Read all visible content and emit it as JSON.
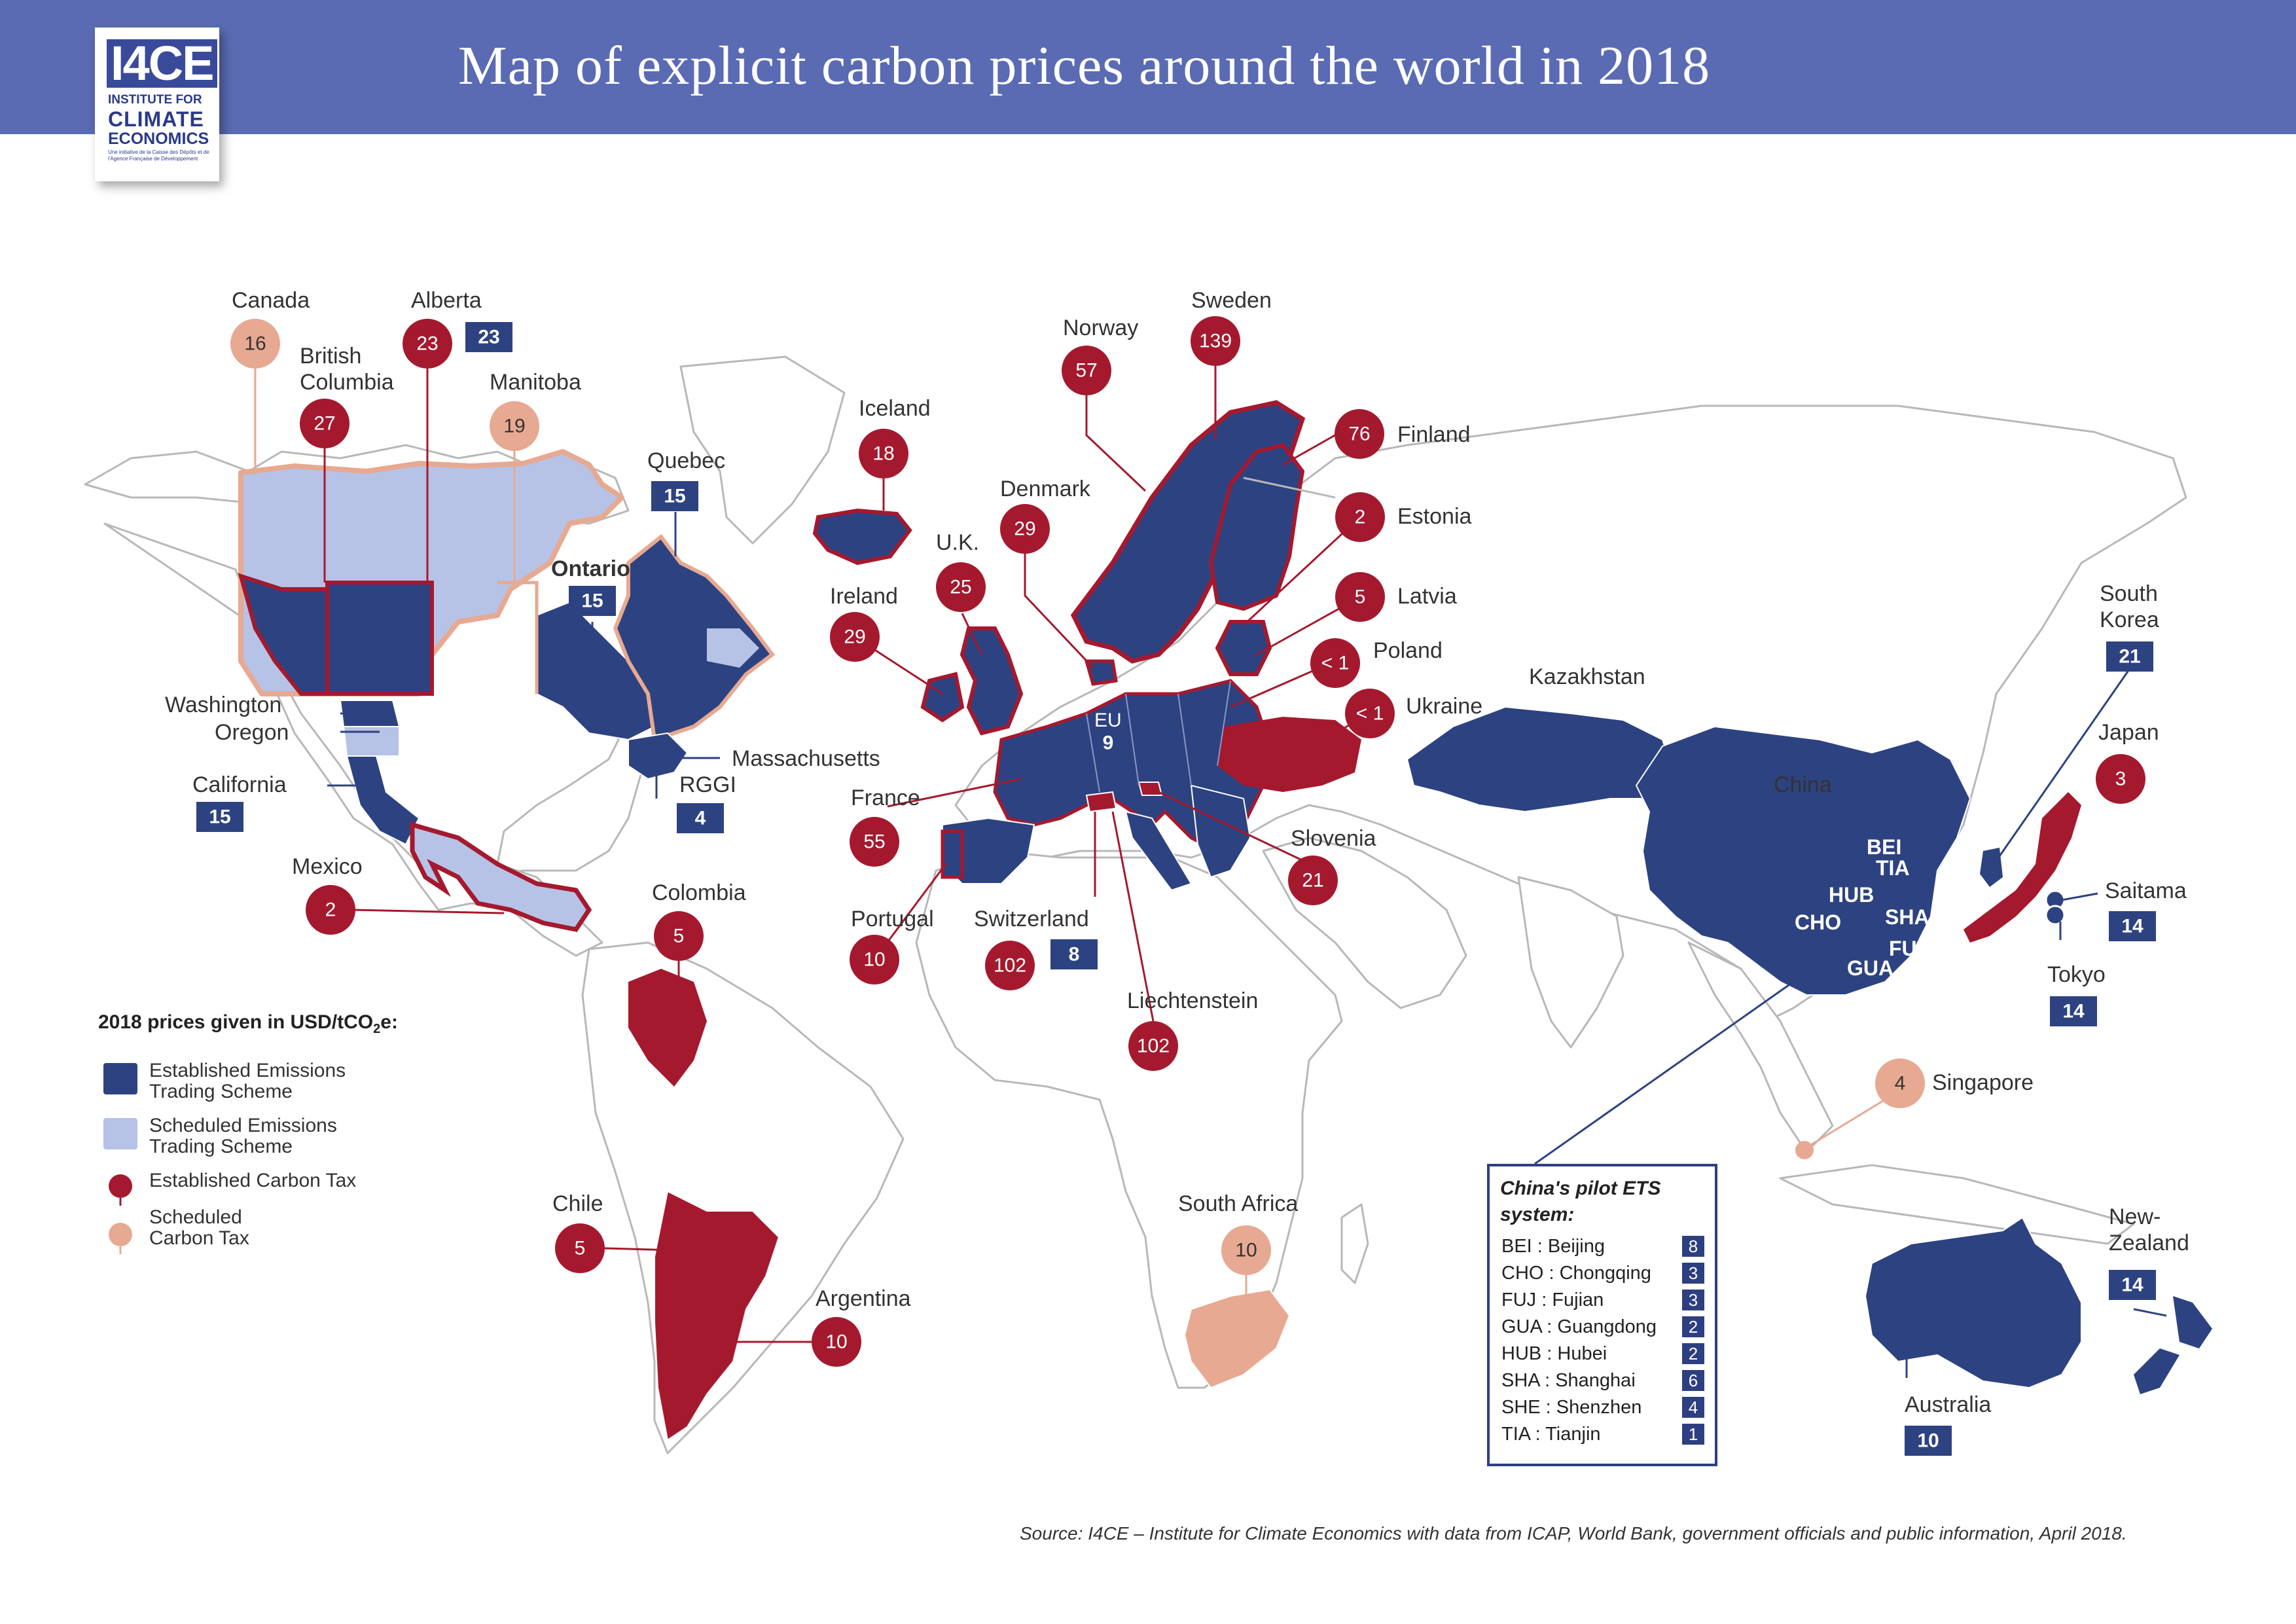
{
  "header": {
    "title": "Map of explicit carbon prices around the world in 2018"
  },
  "logo": {
    "mark": "I4CE",
    "line1": "INSTITUTE FOR",
    "line2": "CLIMATE",
    "line3": "ECONOMICS",
    "tagline": "Une initiative de la Caisse des Dépôts et de l'Agence Française de Développement"
  },
  "colors": {
    "header": "#5a6bb3",
    "established_ets": "#2d4280",
    "scheduled_ets": "#b6c3e6",
    "established_tax": "#a5192e",
    "scheduled_tax": "#e7a992",
    "land": "#ffffff",
    "border": "#b8b8b8"
  },
  "labels": {
    "canada": "Canada",
    "alberta": "Alberta",
    "british_columbia_1": "British",
    "british_columbia_2": "Columbia",
    "manitoba": "Manitoba",
    "quebec": "Quebec",
    "ontario": "Ontario",
    "washington": "Washington",
    "oregon": "Oregon",
    "california": "California",
    "massachusetts": "Massachusetts",
    "rggi": "RGGI",
    "mexico": "Mexico",
    "colombia": "Colombia",
    "chile": "Chile",
    "argentina": "Argentina",
    "iceland": "Iceland",
    "norway": "Norway",
    "sweden": "Sweden",
    "finland": "Finland",
    "denmark": "Denmark",
    "estonia": "Estonia",
    "uk": "U.K.",
    "ireland": "Ireland",
    "latvia": "Latvia",
    "poland": "Poland",
    "ukraine": "Ukraine",
    "eu": "EU",
    "france": "France",
    "portugal": "Portugal",
    "switzerland": "Switzerland",
    "liechtenstein": "Liechtenstein",
    "slovenia": "Slovenia",
    "south_africa": "South Africa",
    "kazakhstan": "Kazakhstan",
    "china": "China",
    "south_korea_1": "South",
    "south_korea_2": "Korea",
    "japan": "Japan",
    "saitama": "Saitama",
    "tokyo": "Tokyo",
    "singapore": "Singapore",
    "australia": "Australia",
    "new_zealand_1": "New-",
    "new_zealand_2": "Zealand"
  },
  "prices": {
    "canada": "16",
    "alberta_tax": "23",
    "alberta_ets": "23",
    "british_columbia": "27",
    "manitoba": "19",
    "quebec": "15",
    "ontario": "15",
    "california": "15",
    "rggi": "4",
    "mexico": "2",
    "colombia": "5",
    "chile": "5",
    "argentina": "10",
    "iceland": "18",
    "norway": "57",
    "sweden": "139",
    "finland": "76",
    "denmark": "29",
    "estonia": "2",
    "uk": "25",
    "ireland": "29",
    "latvia": "5",
    "poland": "< 1",
    "ukraine": "< 1",
    "eu": "9",
    "france": "55",
    "portugal": "10",
    "switzerland_tax": "102",
    "switzerland_ets": "8",
    "liechtenstein": "102",
    "slovenia": "21",
    "south_africa": "10",
    "south_korea": "21",
    "japan": "3",
    "saitama": "14",
    "tokyo": "14",
    "singapore": "4",
    "australia": "10",
    "new_zealand": "14"
  },
  "china_codes": [
    "BEI",
    "TIA",
    "HUB",
    "CHO",
    "SHA",
    "FUJ",
    "GUA",
    "SHE"
  ],
  "legend": {
    "title_prefix": "2018 prices given in USD/tCO",
    "title_sub": "2",
    "title_suffix": "e:",
    "items": [
      {
        "line1": "Established Emissions",
        "line2": "Trading Scheme"
      },
      {
        "line1": "Scheduled Emissions",
        "line2": "Trading Scheme"
      },
      {
        "line1": "Established Carbon Tax",
        "line2": ""
      },
      {
        "line1": "Scheduled",
        "line2": "Carbon Tax"
      }
    ]
  },
  "ets_box": {
    "title_1": "China's pilot ETS",
    "title_2": "system:",
    "rows": [
      {
        "name": "BEI : Beijing",
        "value": "8"
      },
      {
        "name": "CHO : Chongqing",
        "value": "3"
      },
      {
        "name": "FUJ : Fujian",
        "value": "3"
      },
      {
        "name": "GUA : Guangdong",
        "value": "2"
      },
      {
        "name": "HUB : Hubei",
        "value": "2"
      },
      {
        "name": "SHA : Shanghai",
        "value": "6"
      },
      {
        "name": "SHE : Shenzhen",
        "value": "4"
      },
      {
        "name": "TIA : Tianjin",
        "value": "1"
      }
    ]
  },
  "source": "Source: I4CE – Institute for Climate Economics with data from ICAP, World Bank, government officials and public information, April 2018."
}
